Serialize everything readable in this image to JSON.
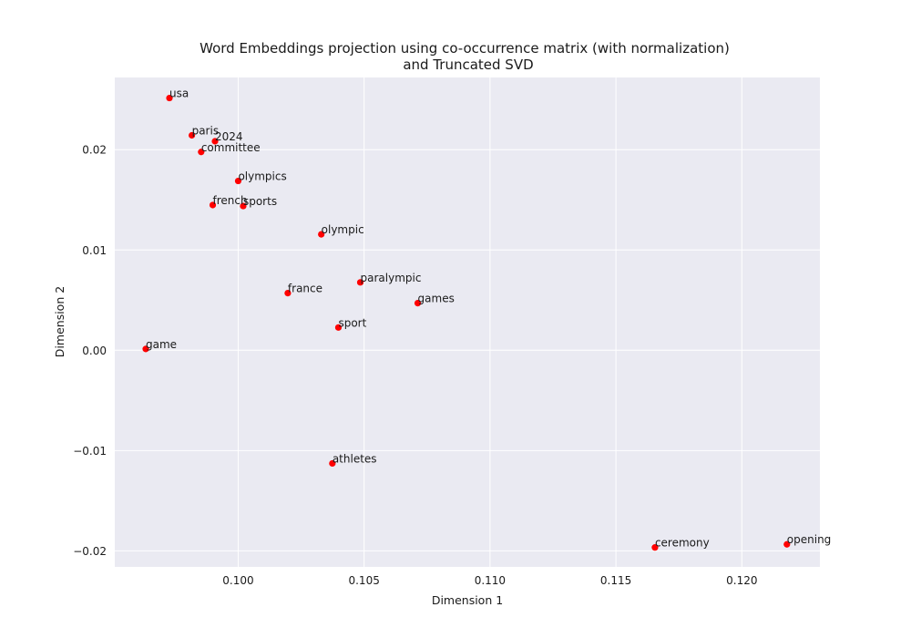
{
  "chart_data": {
    "type": "scatter",
    "title": "Word Embeddings projection using co-occurrence matrix (with normalization)",
    "subtitle": "and Truncated SVD",
    "xlabel": "Dimension 1",
    "ylabel": "Dimension 2",
    "xlim": [
      0.0951,
      0.1231
    ],
    "ylim": [
      -0.0216,
      0.0272
    ],
    "xticks": [
      {
        "value": 0.1,
        "label": "0.100"
      },
      {
        "value": 0.105,
        "label": "0.105"
      },
      {
        "value": 0.11,
        "label": "0.110"
      },
      {
        "value": 0.115,
        "label": "0.115"
      },
      {
        "value": 0.12,
        "label": "0.120"
      }
    ],
    "yticks": [
      {
        "value": -0.02,
        "label": "−0.02"
      },
      {
        "value": -0.01,
        "label": "−0.01"
      },
      {
        "value": 0.0,
        "label": "0.00"
      },
      {
        "value": 0.01,
        "label": "0.01"
      },
      {
        "value": 0.02,
        "label": "0.02"
      }
    ],
    "grid": true,
    "point_color": "#ff0000",
    "background_color": "#eaeaf2",
    "grid_color": "#ffffff",
    "points": [
      {
        "label": "usa",
        "x": 0.09727,
        "y": 0.02515
      },
      {
        "label": "paris",
        "x": 0.09816,
        "y": 0.02143
      },
      {
        "label": "2024",
        "x": 0.09908,
        "y": 0.02084
      },
      {
        "label": "committee",
        "x": 0.09853,
        "y": 0.01977
      },
      {
        "label": "olympics",
        "x": 0.1,
        "y": 0.01688
      },
      {
        "label": "french",
        "x": 0.09899,
        "y": 0.01448
      },
      {
        "label": "sports",
        "x": 0.1002,
        "y": 0.01438
      },
      {
        "label": "olympic",
        "x": 0.1033,
        "y": 0.01156
      },
      {
        "label": "paralympic",
        "x": 0.10485,
        "y": 0.00677
      },
      {
        "label": "france",
        "x": 0.10197,
        "y": 0.0057
      },
      {
        "label": "games",
        "x": 0.10713,
        "y": 0.0047
      },
      {
        "label": "sport",
        "x": 0.10398,
        "y": 0.00227
      },
      {
        "label": "game",
        "x": 0.09633,
        "y": 0.00013
      },
      {
        "label": "athletes",
        "x": 0.10374,
        "y": -0.01128
      },
      {
        "label": "ceremony",
        "x": 0.11655,
        "y": -0.01966
      },
      {
        "label": "opening",
        "x": 0.12179,
        "y": -0.01935
      }
    ]
  }
}
